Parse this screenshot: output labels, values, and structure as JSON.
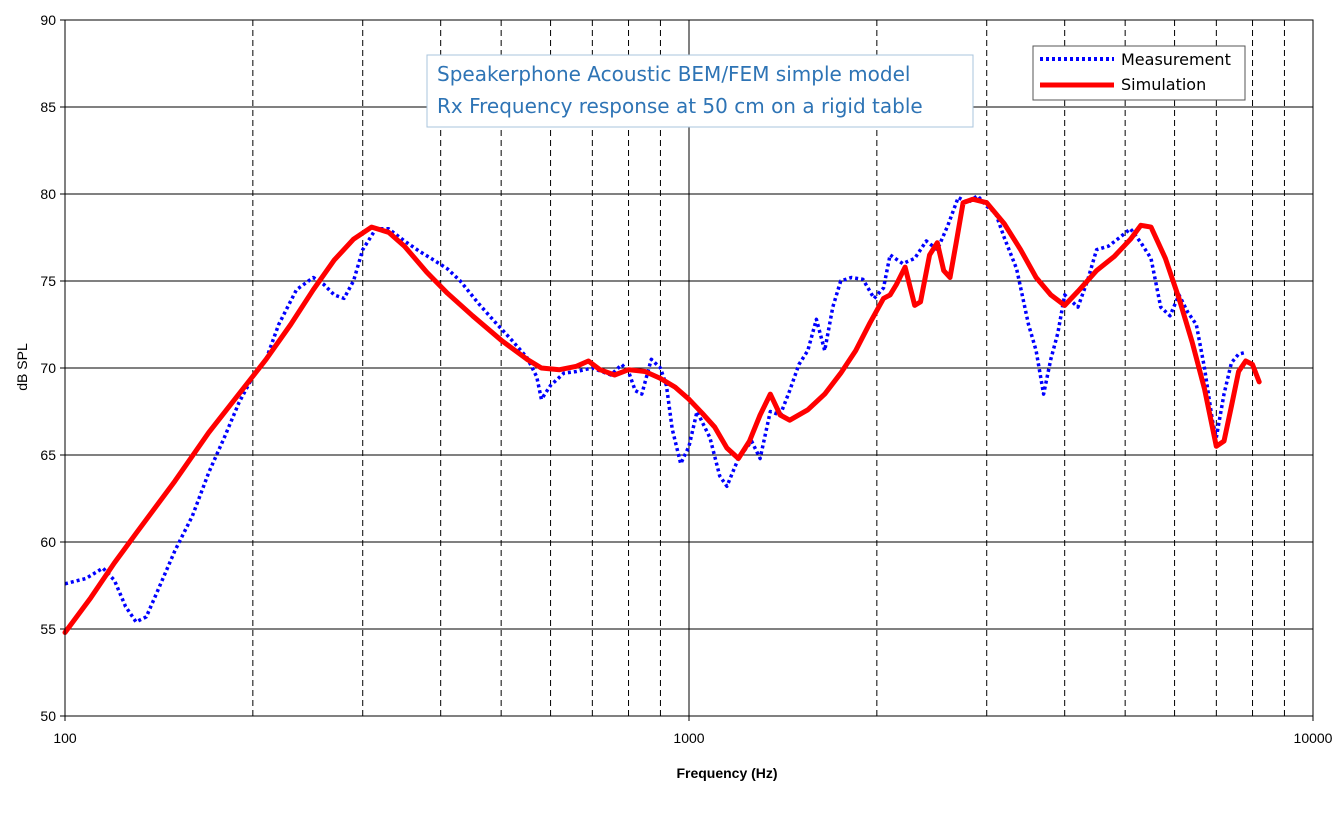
{
  "chart_data": {
    "type": "line",
    "title": [
      "Speakerphone Acoustic BEM/FEM simple model",
      "Rx Frequency response at 50 cm on a rigid table"
    ],
    "xlabel": "Frequency (Hz)",
    "ylabel": "dB SPL",
    "x_scale": "log",
    "xlim": [
      100,
      10000
    ],
    "ylim": [
      50,
      90
    ],
    "x_tick_labels": [
      "100",
      "1000",
      "10000"
    ],
    "y_tick_labels": [
      "50",
      "55",
      "60",
      "65",
      "70",
      "75",
      "80",
      "85",
      "90"
    ],
    "grid": true,
    "legend_position": "top-right",
    "series": [
      {
        "name": "Measurement",
        "color": "#0000ff",
        "style": "dotted",
        "points": [
          [
            100,
            57.6
          ],
          [
            108,
            57.9
          ],
          [
            115,
            58.5
          ],
          [
            120,
            57.8
          ],
          [
            125,
            56.3
          ],
          [
            130,
            55.4
          ],
          [
            135,
            55.7
          ],
          [
            140,
            57
          ],
          [
            150,
            59.5
          ],
          [
            160,
            61.5
          ],
          [
            170,
            64
          ],
          [
            180,
            66
          ],
          [
            190,
            68
          ],
          [
            200,
            69.5
          ],
          [
            210,
            70.5
          ],
          [
            220,
            72.5
          ],
          [
            235,
            74.5
          ],
          [
            250,
            75.2
          ],
          [
            260,
            74.8
          ],
          [
            270,
            74.2
          ],
          [
            280,
            74
          ],
          [
            290,
            75
          ],
          [
            300,
            76.8
          ],
          [
            315,
            78
          ],
          [
            330,
            78
          ],
          [
            350,
            77.3
          ],
          [
            370,
            76.7
          ],
          [
            390,
            76.2
          ],
          [
            410,
            75.7
          ],
          [
            430,
            75
          ],
          [
            460,
            73.7
          ],
          [
            490,
            72.6
          ],
          [
            520,
            71.6
          ],
          [
            550,
            70.6
          ],
          [
            570,
            69.5
          ],
          [
            580,
            68.2
          ],
          [
            600,
            69
          ],
          [
            630,
            69.7
          ],
          [
            660,
            69.8
          ],
          [
            700,
            70
          ],
          [
            750,
            69.6
          ],
          [
            780,
            70.2
          ],
          [
            800,
            69.8
          ],
          [
            820,
            68.7
          ],
          [
            840,
            68.5
          ],
          [
            870,
            70.5
          ],
          [
            900,
            70
          ],
          [
            920,
            69
          ],
          [
            940,
            66.5
          ],
          [
            970,
            64.5
          ],
          [
            1000,
            65.5
          ],
          [
            1030,
            67.5
          ],
          [
            1080,
            66
          ],
          [
            1120,
            63.8
          ],
          [
            1150,
            63.2
          ],
          [
            1200,
            64.8
          ],
          [
            1260,
            65.8
          ],
          [
            1300,
            64.8
          ],
          [
            1350,
            67.5
          ],
          [
            1400,
            67.3
          ],
          [
            1450,
            68.7
          ],
          [
            1500,
            70.2
          ],
          [
            1550,
            71
          ],
          [
            1600,
            72.8
          ],
          [
            1650,
            71
          ],
          [
            1700,
            73.5
          ],
          [
            1750,
            75
          ],
          [
            1820,
            75.2
          ],
          [
            1900,
            75.1
          ],
          [
            1980,
            74
          ],
          [
            2050,
            74.6
          ],
          [
            2100,
            76.5
          ],
          [
            2200,
            76
          ],
          [
            2300,
            76.3
          ],
          [
            2400,
            77.3
          ],
          [
            2500,
            76.8
          ],
          [
            2600,
            78.2
          ],
          [
            2700,
            79.8
          ],
          [
            2800,
            79.5
          ],
          [
            2900,
            79.9
          ],
          [
            3000,
            79.3
          ],
          [
            3100,
            78.9
          ],
          [
            3200,
            77.5
          ],
          [
            3350,
            75.7
          ],
          [
            3500,
            72.5
          ],
          [
            3600,
            71
          ],
          [
            3700,
            68.5
          ],
          [
            3800,
            70.5
          ],
          [
            3900,
            72
          ],
          [
            4000,
            74.2
          ],
          [
            4200,
            73.5
          ],
          [
            4350,
            75
          ],
          [
            4500,
            76.8
          ],
          [
            4700,
            77
          ],
          [
            4900,
            77.5
          ],
          [
            5100,
            78
          ],
          [
            5300,
            77.2
          ],
          [
            5500,
            76.3
          ],
          [
            5700,
            73.5
          ],
          [
            5900,
            73
          ],
          [
            6100,
            74.2
          ],
          [
            6300,
            73.2
          ],
          [
            6500,
            72.5
          ],
          [
            6700,
            70
          ],
          [
            6900,
            67
          ],
          [
            7000,
            66
          ],
          [
            7200,
            68.5
          ],
          [
            7400,
            70.3
          ],
          [
            7600,
            70.8
          ],
          [
            7800,
            70.9
          ]
        ]
      },
      {
        "name": "Simulation",
        "color": "#ff0000",
        "style": "solid",
        "points": [
          [
            100,
            54.8
          ],
          [
            110,
            56.8
          ],
          [
            120,
            58.8
          ],
          [
            130,
            60.5
          ],
          [
            150,
            63.5
          ],
          [
            170,
            66.3
          ],
          [
            190,
            68.5
          ],
          [
            210,
            70.5
          ],
          [
            230,
            72.5
          ],
          [
            250,
            74.5
          ],
          [
            270,
            76.2
          ],
          [
            290,
            77.4
          ],
          [
            310,
            78.1
          ],
          [
            330,
            77.8
          ],
          [
            350,
            77
          ],
          [
            380,
            75.5
          ],
          [
            410,
            74.3
          ],
          [
            450,
            73
          ],
          [
            500,
            71.6
          ],
          [
            550,
            70.5
          ],
          [
            580,
            70
          ],
          [
            620,
            69.9
          ],
          [
            660,
            70.1
          ],
          [
            690,
            70.4
          ],
          [
            720,
            69.9
          ],
          [
            760,
            69.6
          ],
          [
            800,
            69.9
          ],
          [
            850,
            69.8
          ],
          [
            900,
            69.4
          ],
          [
            950,
            68.9
          ],
          [
            1000,
            68.2
          ],
          [
            1050,
            67.4
          ],
          [
            1100,
            66.6
          ],
          [
            1150,
            65.4
          ],
          [
            1200,
            64.8
          ],
          [
            1250,
            65.8
          ],
          [
            1300,
            67.3
          ],
          [
            1350,
            68.5
          ],
          [
            1400,
            67.3
          ],
          [
            1450,
            67
          ],
          [
            1550,
            67.6
          ],
          [
            1650,
            68.5
          ],
          [
            1750,
            69.7
          ],
          [
            1850,
            71
          ],
          [
            1950,
            72.6
          ],
          [
            2050,
            74
          ],
          [
            2100,
            74.2
          ],
          [
            2150,
            74.8
          ],
          [
            2220,
            75.8
          ],
          [
            2300,
            73.6
          ],
          [
            2350,
            73.8
          ],
          [
            2430,
            76.5
          ],
          [
            2500,
            77.2
          ],
          [
            2560,
            75.6
          ],
          [
            2620,
            75.2
          ],
          [
            2680,
            77.2
          ],
          [
            2750,
            79.5
          ],
          [
            2850,
            79.7
          ],
          [
            3000,
            79.5
          ],
          [
            3200,
            78.3
          ],
          [
            3400,
            76.8
          ],
          [
            3600,
            75.2
          ],
          [
            3800,
            74.2
          ],
          [
            4000,
            73.6
          ],
          [
            4200,
            74.4
          ],
          [
            4500,
            75.6
          ],
          [
            4800,
            76.4
          ],
          [
            5100,
            77.4
          ],
          [
            5300,
            78.2
          ],
          [
            5500,
            78.1
          ],
          [
            5800,
            76.3
          ],
          [
            6100,
            74
          ],
          [
            6400,
            71.5
          ],
          [
            6700,
            68.8
          ],
          [
            7000,
            65.5
          ],
          [
            7200,
            65.8
          ],
          [
            7400,
            67.8
          ],
          [
            7600,
            69.8
          ],
          [
            7800,
            70.4
          ],
          [
            8000,
            70.2
          ],
          [
            8200,
            69.2
          ]
        ]
      }
    ]
  }
}
